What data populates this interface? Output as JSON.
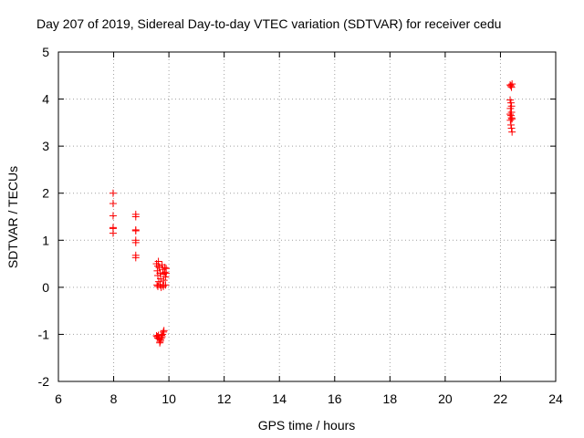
{
  "chart_data": {
    "type": "scatter",
    "title": "Day 207 of 2019, Sidereal Day-to-day VTEC variation (SDTVAR) for receiver cedu",
    "xlabel": "GPS time / hours",
    "ylabel": "SDTVAR / TECUs",
    "xlim": [
      6,
      24
    ],
    "ylim": [
      -2,
      5
    ],
    "xticks": [
      6,
      8,
      10,
      12,
      14,
      16,
      18,
      20,
      22,
      24
    ],
    "yticks": [
      -2,
      -1,
      0,
      1,
      2,
      3,
      4,
      5
    ],
    "grid": true,
    "marker": "+",
    "color": "#ff0000",
    "series": [
      {
        "name": "SDTVAR",
        "points": [
          [
            7.98,
            2.0
          ],
          [
            7.98,
            1.78
          ],
          [
            7.98,
            1.52
          ],
          [
            7.98,
            1.27
          ],
          [
            7.98,
            1.25
          ],
          [
            7.98,
            1.15
          ],
          [
            8.8,
            1.55
          ],
          [
            8.8,
            1.5
          ],
          [
            8.8,
            1.22
          ],
          [
            8.8,
            1.2
          ],
          [
            8.8,
            1.0
          ],
          [
            8.8,
            0.95
          ],
          [
            8.8,
            0.68
          ],
          [
            8.8,
            0.63
          ],
          [
            9.55,
            0.5
          ],
          [
            9.6,
            0.45
          ],
          [
            9.62,
            0.55
          ],
          [
            9.58,
            0.35
          ],
          [
            9.6,
            0.25
          ],
          [
            9.63,
            0.12
          ],
          [
            9.57,
            0.05
          ],
          [
            9.6,
            0.02
          ],
          [
            9.65,
            0.42
          ],
          [
            9.68,
            0.3
          ],
          [
            9.7,
            0.18
          ],
          [
            9.68,
            0.05
          ],
          [
            9.72,
            0.0
          ],
          [
            9.75,
            0.48
          ],
          [
            9.78,
            0.38
          ],
          [
            9.8,
            0.28
          ],
          [
            9.82,
            0.15
          ],
          [
            9.78,
            0.05
          ],
          [
            9.8,
            0.02
          ],
          [
            9.85,
            0.42
          ],
          [
            9.85,
            0.32
          ],
          [
            9.88,
            0.05
          ],
          [
            9.9,
            0.4
          ],
          [
            9.9,
            0.3
          ],
          [
            9.88,
            0.22
          ],
          [
            9.55,
            -1.03
          ],
          [
            9.58,
            -1.05
          ],
          [
            9.6,
            -1.08
          ],
          [
            9.62,
            -1.02
          ],
          [
            9.65,
            -1.1
          ],
          [
            9.68,
            -1.15
          ],
          [
            9.7,
            -1.12
          ],
          [
            9.72,
            -1.08
          ],
          [
            9.75,
            -1.05
          ],
          [
            9.77,
            -1.0
          ],
          [
            9.8,
            -0.95
          ],
          [
            9.82,
            -0.92
          ],
          [
            9.67,
            -1.18
          ],
          [
            9.73,
            -1.02
          ],
          [
            22.35,
            4.3
          ],
          [
            22.38,
            4.28
          ],
          [
            22.42,
            4.32
          ],
          [
            22.4,
            4.25
          ],
          [
            22.35,
            3.98
          ],
          [
            22.38,
            3.92
          ],
          [
            22.4,
            3.85
          ],
          [
            22.36,
            3.8
          ],
          [
            22.35,
            3.68
          ],
          [
            22.38,
            3.65
          ],
          [
            22.4,
            3.6
          ],
          [
            22.42,
            3.58
          ],
          [
            22.36,
            3.55
          ],
          [
            22.4,
            3.72
          ],
          [
            22.38,
            3.45
          ],
          [
            22.4,
            3.38
          ],
          [
            22.42,
            3.3
          ]
        ]
      }
    ]
  }
}
